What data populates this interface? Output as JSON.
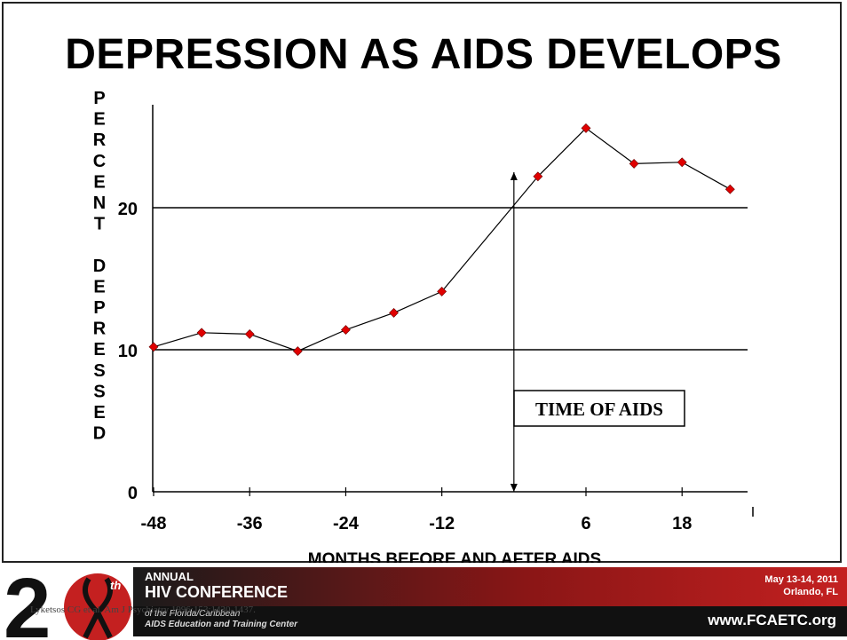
{
  "slide": {
    "title": "DEPRESSION AS AIDS DEVELOPS"
  },
  "chart_data": {
    "type": "line",
    "title": "DEPRESSION AS AIDS DEVELOPS",
    "xlabel": "MONTHS BEFORE AND AFTER AIDS",
    "ylabel_letters": [
      "P",
      "E",
      "R",
      "C",
      "E",
      "N",
      "T",
      "",
      "D",
      "E",
      "P",
      "R",
      "E",
      "S",
      "S",
      "E",
      "D"
    ],
    "x_ticks": [
      -48,
      -36,
      -24,
      -12,
      6,
      18
    ],
    "y_ticks": [
      0,
      10,
      20
    ],
    "xlim": [
      -48,
      18
    ],
    "ylim": [
      0,
      28
    ],
    "gridlines_y": [
      10,
      20
    ],
    "series": [
      {
        "color": "#e00000",
        "points": [
          {
            "x": -48,
            "y": 10.2
          },
          {
            "x": -42,
            "y": 11.2
          },
          {
            "x": -36,
            "y": 11.1
          },
          {
            "x": -30,
            "y": 9.9
          },
          {
            "x": -24,
            "y": 11.4
          },
          {
            "x": -18,
            "y": 12.6
          },
          {
            "x": -12,
            "y": 14.1
          },
          {
            "x": 0,
            "y": 22.2
          },
          {
            "x": 6,
            "y": 25.6
          },
          {
            "x": 12,
            "y": 23.1
          },
          {
            "x": 18,
            "y": 23.2
          },
          {
            "x": 24,
            "y": 21.3
          }
        ]
      }
    ],
    "annotation": {
      "label": "TIME OF AIDS",
      "arrow_x": -3,
      "arrow_from_y": 0,
      "arrow_to_y": 22.5
    }
  },
  "footer": {
    "logo_digits": "20",
    "logo_sup": "th",
    "annual": "ANNUAL",
    "conference": "HIV CONFERENCE",
    "sub1": "of the Florida/Caribbean",
    "sub2": "AIDS Education and Training Center",
    "date": "May 13-14, 2011",
    "place": "Orlando, FL",
    "url": "www.FCAETC.org",
    "citation": "Lyketsos CG et al. Am J Psychiatry 1996;153:1430-1437."
  }
}
